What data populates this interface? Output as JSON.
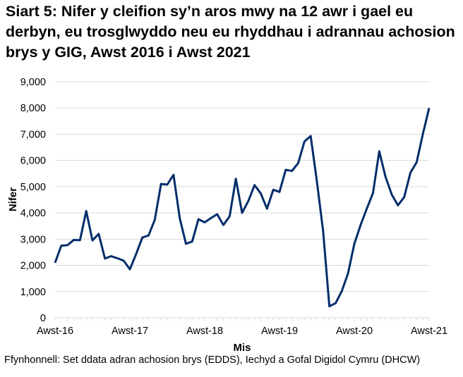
{
  "chart_data": {
    "type": "line",
    "title": "Siart 5: Nifer y cleifion sy’n aros mwy na 12 awr i gael eu derbyn, eu trosglwyddo neu eu rhyddhau i adrannau achosion brys y GIG, Awst 2016 i Awst 2021",
    "xlabel": "Mis",
    "ylabel": "Nifer",
    "ylim": [
      0,
      9000
    ],
    "yticks": [
      "0",
      "1,000",
      "2,000",
      "3,000",
      "4,000",
      "5,000",
      "6,000",
      "7,000",
      "8,000",
      "9,000"
    ],
    "xtick_labels": [
      "Awst-16",
      "Awst-17",
      "Awst-18",
      "Awst-19",
      "Awst-20",
      "Awst-21"
    ],
    "grid": true,
    "color": "#002d6a",
    "x_range": [
      "Awst-16",
      "Awst-21"
    ],
    "values": [
      2100,
      2750,
      2770,
      2970,
      2960,
      4070,
      2950,
      3200,
      2260,
      2350,
      2270,
      2180,
      1850,
      2430,
      3060,
      3140,
      3740,
      5100,
      5080,
      5450,
      3800,
      2820,
      2910,
      3760,
      3640,
      3800,
      3950,
      3540,
      3870,
      5300,
      4000,
      4450,
      5060,
      4740,
      4160,
      4880,
      4800,
      5640,
      5600,
      5900,
      6720,
      6930,
      5200,
      3300,
      440,
      560,
      1020,
      1700,
      2820,
      3530,
      4160,
      4760,
      6350,
      5380,
      4700,
      4290,
      4600,
      5530,
      5930,
      7010,
      8000
    ]
  },
  "source": "Ffynhonnell: Set ddata adran achosion brys (EDDS), Iechyd a Gofal Digidol Cymru (DHCW)"
}
